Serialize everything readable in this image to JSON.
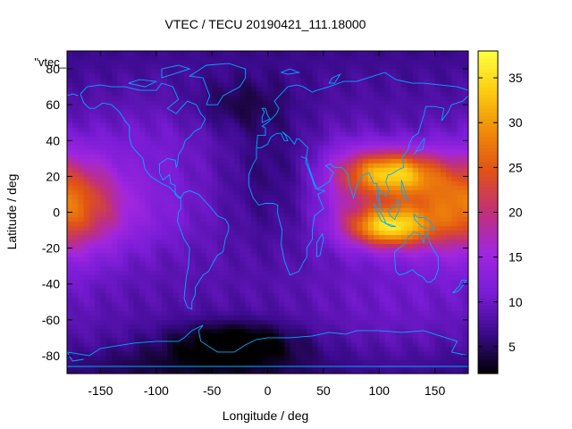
{
  "chart_data": {
    "type": "heatmap",
    "title": "VTEC / TECU 20190421_111.18000",
    "xlabel": "Longitude / deg",
    "ylabel": "Latitude / deg",
    "series_label": "\"vtec_",
    "xlim": [
      -180,
      180
    ],
    "ylim": [
      -90,
      90
    ],
    "x_ticks": [
      -150,
      -100,
      -50,
      0,
      50,
      100,
      150
    ],
    "y_ticks": [
      -80,
      -60,
      -40,
      -20,
      0,
      20,
      40,
      60,
      80
    ],
    "colorbar": {
      "range": [
        2,
        38
      ],
      "ticks": [
        5,
        10,
        15,
        20,
        25,
        30,
        35
      ],
      "palette": [
        "#000000",
        "#3a0a8c",
        "#7a1cd6",
        "#a026e0",
        "#c0307a",
        "#e05018",
        "#f08a08",
        "#fccc10",
        "#ffff40"
      ]
    },
    "grid": {
      "lon_step": 5,
      "lat_step": 2.5,
      "background_tecu": 9,
      "features": [
        {
          "lon": 110,
          "lat": 22,
          "sx": 28,
          "sy": 9,
          "amp": 21
        },
        {
          "lon": 108,
          "lat": -8,
          "sx": 26,
          "sy": 8,
          "amp": 22
        },
        {
          "lon": 150,
          "lat": 5,
          "sx": 40,
          "sy": 18,
          "amp": 9
        },
        {
          "lon": 70,
          "lat": 15,
          "sx": 22,
          "sy": 18,
          "amp": 5
        },
        {
          "lon": -175,
          "lat": 5,
          "sx": 30,
          "sy": 20,
          "amp": 11
        },
        {
          "lon": -120,
          "lat": 0,
          "sx": 40,
          "sy": 15,
          "amp": 3
        },
        {
          "lon": -30,
          "lat": -72,
          "sx": 40,
          "sy": 8,
          "amp": -7
        },
        {
          "lon": -60,
          "lat": -85,
          "sx": 80,
          "sy": 8,
          "amp": -3
        },
        {
          "lon": 0,
          "lat": 20,
          "sx": 30,
          "sy": 30,
          "amp": -3
        },
        {
          "lon": -30,
          "lat": 60,
          "sx": 30,
          "sy": 10,
          "amp": -3
        },
        {
          "lon": 120,
          "lat": -55,
          "sx": 60,
          "sy": 20,
          "amp": 2
        },
        {
          "lon": -100,
          "lat": 40,
          "sx": 40,
          "sy": 20,
          "amp": 2
        }
      ]
    },
    "overlay": "coastlines",
    "overlay_color": "#00aaff"
  }
}
